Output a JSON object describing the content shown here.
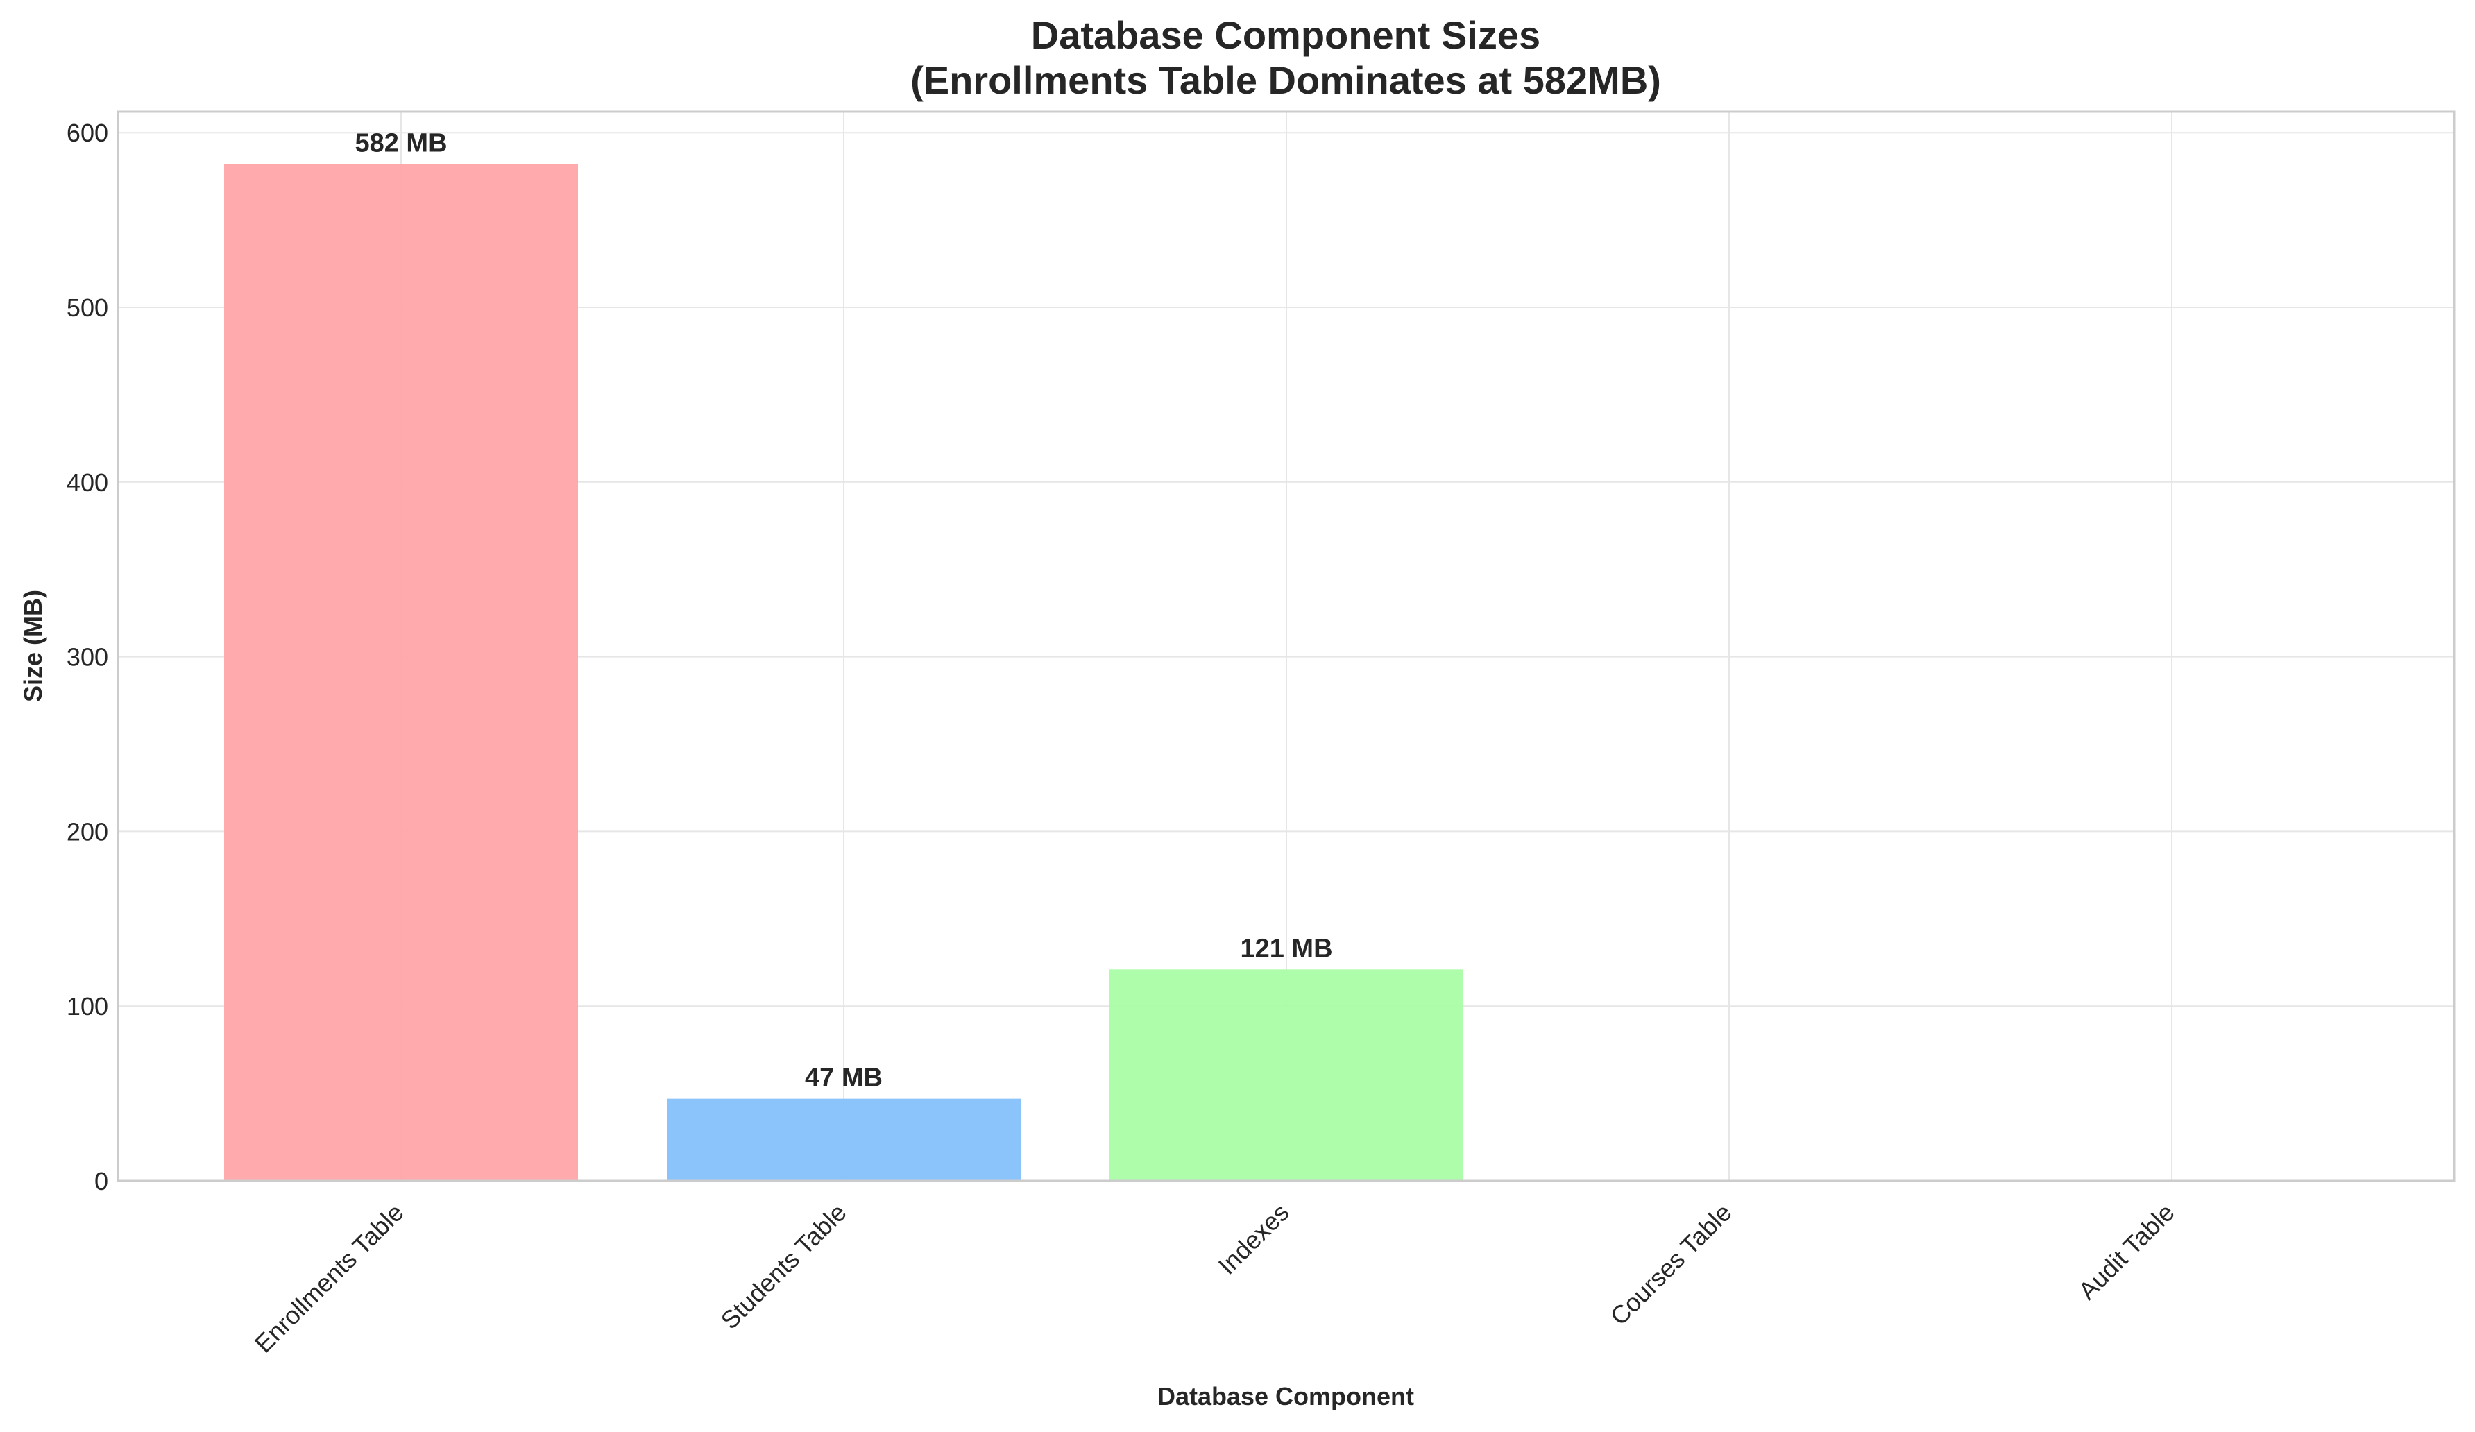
{
  "chart_data": {
    "type": "bar",
    "title_line1": "Database Component Sizes",
    "title_line2": "(Enrollments Table Dominates at 582MB)",
    "xlabel": "Database Component",
    "ylabel": "Size (MB)",
    "categories": [
      "Enrollments Table",
      "Students Table",
      "Indexes",
      "Courses Table",
      "Audit Table"
    ],
    "values": [
      582,
      47,
      121,
      0,
      0
    ],
    "data_labels": [
      "582 MB",
      "47 MB",
      "121 MB",
      "",
      ""
    ],
    "colors": [
      "#ffa6aa",
      "#85c0fb",
      "#aafda6",
      "#ffcc99",
      "#d0b3ff"
    ],
    "ylim": [
      0,
      612
    ],
    "yticks": [
      0,
      100,
      200,
      300,
      400,
      500,
      600
    ],
    "grid": true,
    "legend": "none"
  }
}
